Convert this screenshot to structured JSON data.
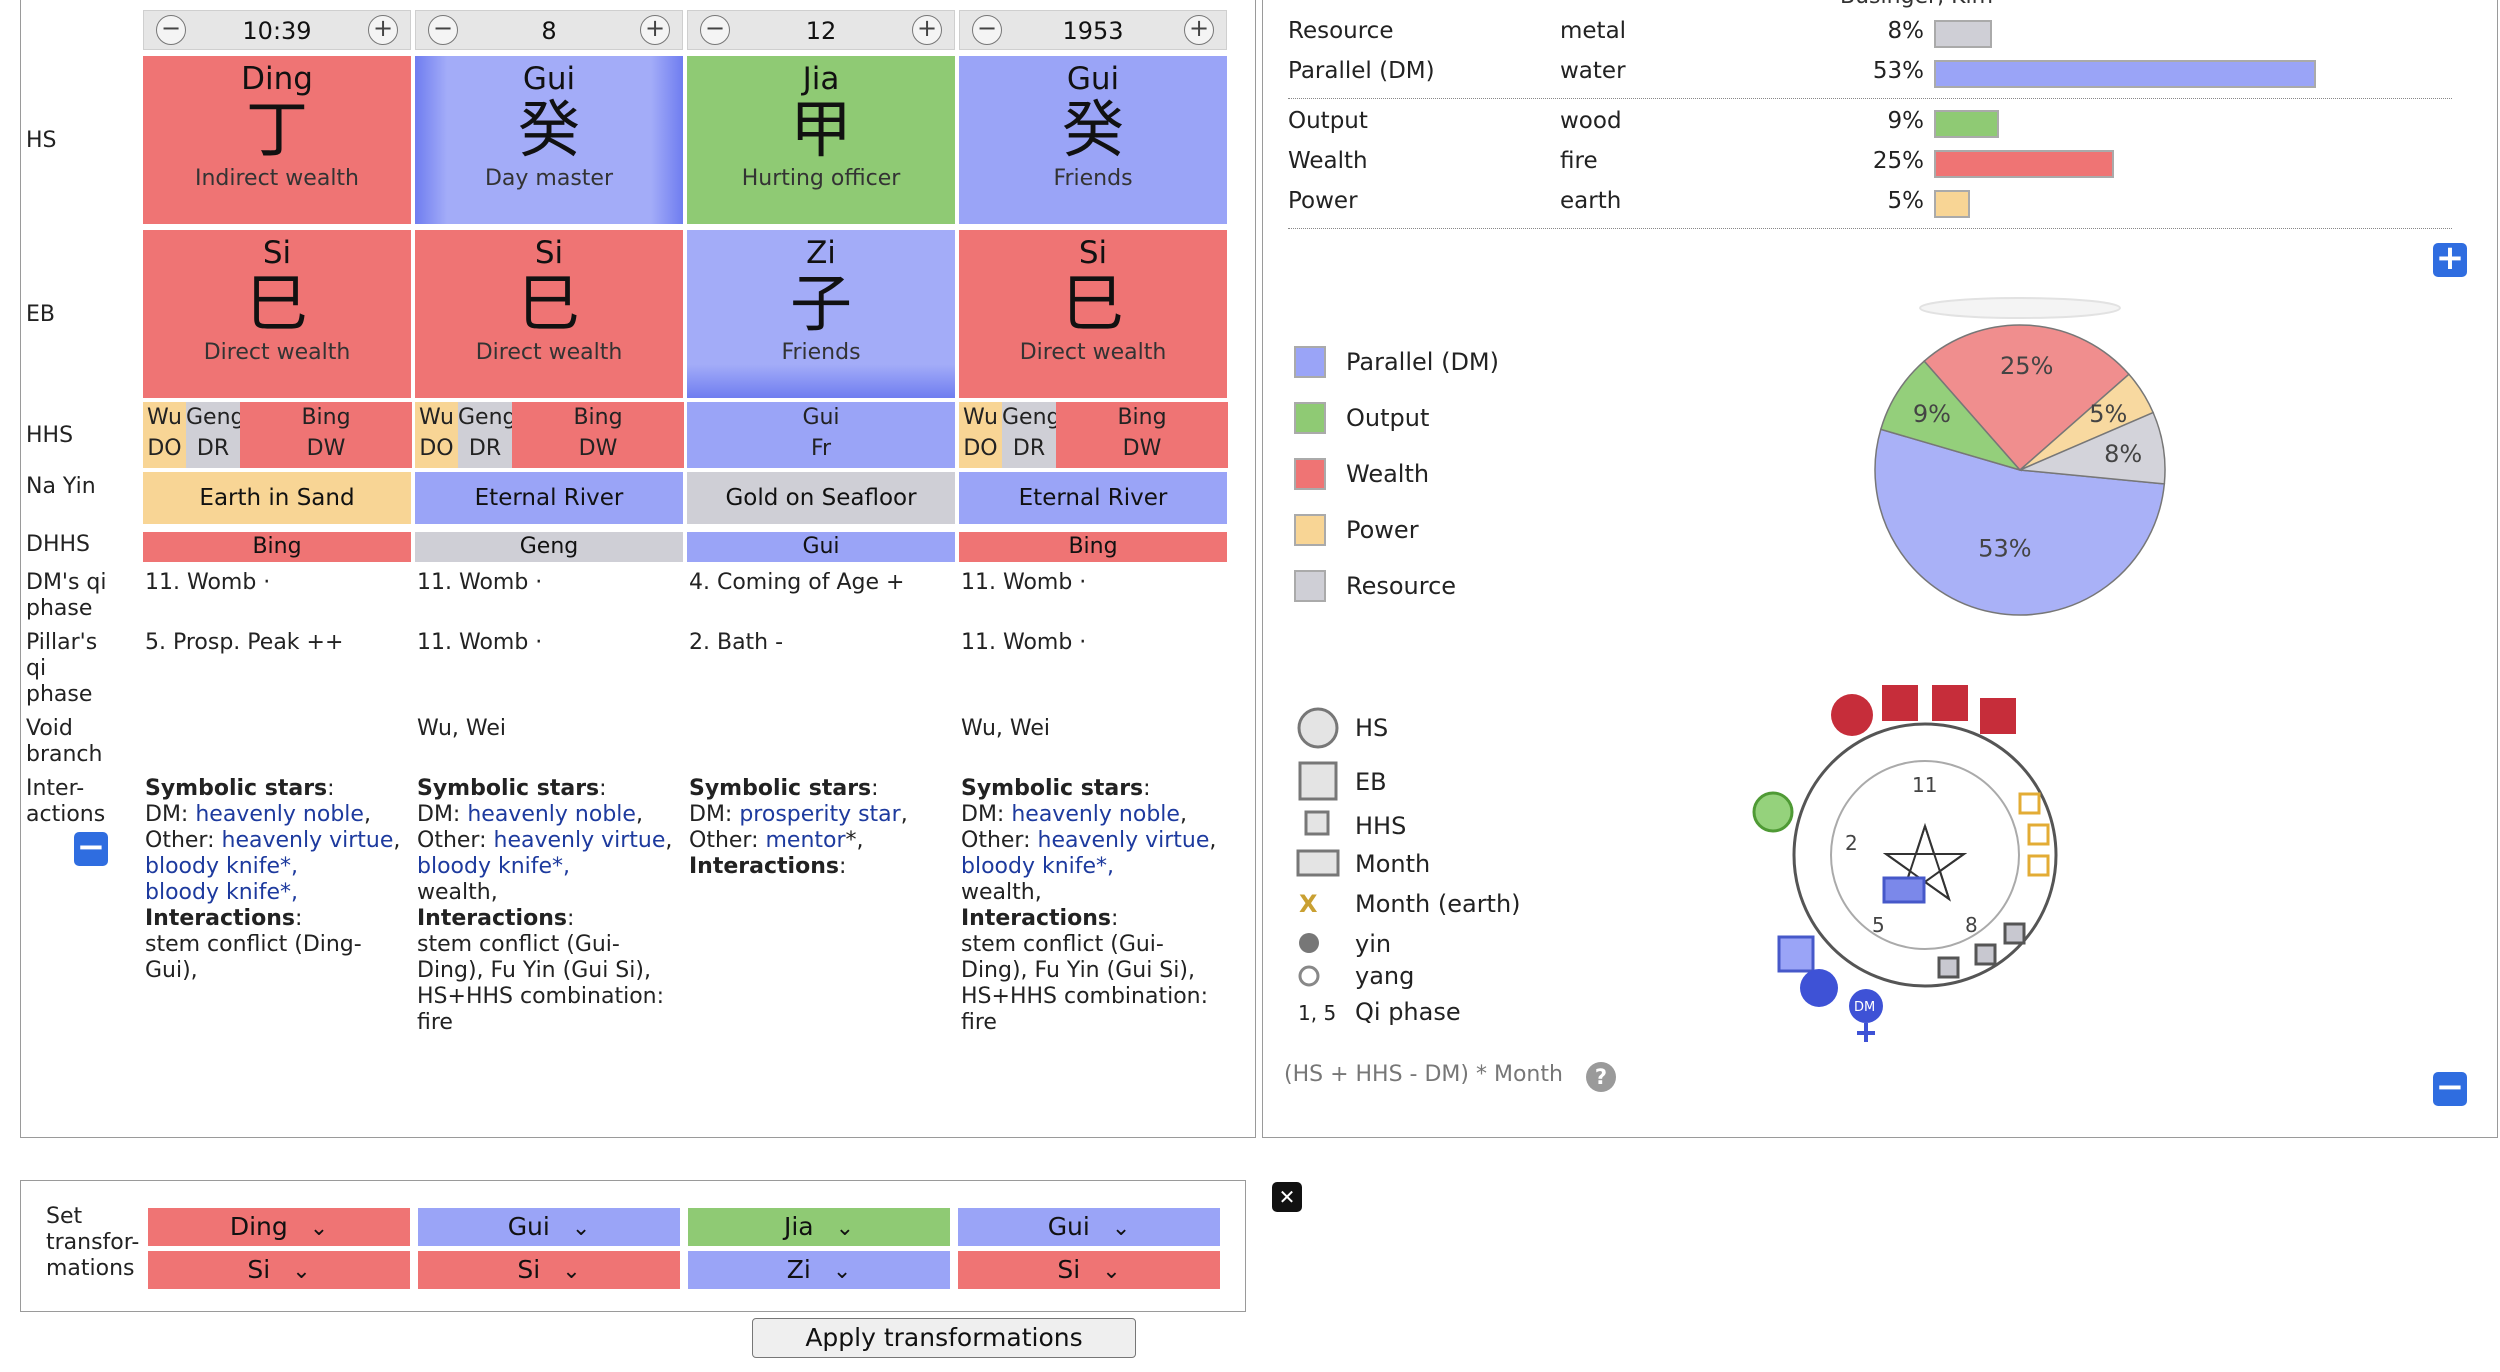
{
  "steppers": [
    {
      "value": "10:39",
      "minus": "−",
      "plus": "+"
    },
    {
      "value": "8",
      "minus": "−",
      "plus": "+"
    },
    {
      "value": "12",
      "minus": "−",
      "plus": "+"
    },
    {
      "value": "1953",
      "minus": "−",
      "plus": "+"
    }
  ],
  "row_labels": {
    "hs": "HS",
    "eb": "EB",
    "hhs": "HHS",
    "nayin": "Na Yin",
    "dhhs": "DHHS",
    "dm_qi": "DM's qi phase",
    "pillar_qi": "Pillar's qi phase",
    "void": "Void branch",
    "inter": "Inter- actions"
  },
  "pillars": [
    {
      "hs": {
        "name": "Ding",
        "char": "丁",
        "role": "Indirect wealth",
        "color": "#ef7474"
      },
      "eb": {
        "name": "Si",
        "char": "巳",
        "role": "Direct wealth",
        "color": "#ef7474"
      },
      "hhs": [
        {
          "a": "Wu",
          "b": "DO",
          "color": "#f8d595"
        },
        {
          "a": "Geng",
          "b": "DR",
          "color": "#cfcfd6"
        },
        {
          "a": "Bing",
          "b": "DW",
          "color": "#ef7474"
        }
      ],
      "nayin": {
        "text": "Earth in Sand",
        "color": "#f8d595"
      },
      "dhhs": {
        "text": "Bing",
        "color": "#ef7474"
      },
      "dm_qi": "11. Womb ·",
      "pillar_qi": "5. Prosp. Peak ++",
      "void": "",
      "stars_head": "Symbolic stars",
      "dm_label": "DM:",
      "dm_stars": "heavenly noble",
      "other_label": "Other:",
      "other_stars": "heavenly virtue",
      "extra_stars": "bloody knife*,",
      "extra_stars2": "bloody knife*,",
      "inter_head": "Interactions",
      "inter_text": "stem conflict (Ding-Gui),"
    },
    {
      "hs": {
        "name": "Gui",
        "char": "癸",
        "role": "Day master",
        "color": "#9aa4f7"
      },
      "eb": {
        "name": "Si",
        "char": "巳",
        "role": "Direct wealth",
        "color": "#ef7474"
      },
      "hhs": [
        {
          "a": "Wu",
          "b": "DO",
          "color": "#f8d595"
        },
        {
          "a": "Geng",
          "b": "DR",
          "color": "#cfcfd6"
        },
        {
          "a": "Bing",
          "b": "DW",
          "color": "#ef7474"
        }
      ],
      "nayin": {
        "text": "Eternal River",
        "color": "#9aa4f7"
      },
      "dhhs": {
        "text": "Geng",
        "color": "#cfcfd6"
      },
      "dm_qi": "11. Womb ·",
      "pillar_qi": "11. Womb ·",
      "void": "Wu, Wei",
      "stars_head": "Symbolic stars",
      "dm_label": "DM:",
      "dm_stars": "heavenly noble",
      "other_label": "Other:",
      "other_stars": "heavenly virtue",
      "extra_stars": "bloody knife*,",
      "extra_stars2": "wealth,",
      "inter_head": "Interactions",
      "inter_text": "stem conflict (Gui-Ding), Fu Yin (Gui Si), HS+HHS combination: fire"
    },
    {
      "hs": {
        "name": "Jia",
        "char": "甲",
        "role": "Hurting officer",
        "color": "#8fca74"
      },
      "eb": {
        "name": "Zi",
        "char": "子",
        "role": "Friends",
        "color": "#9aa4f7"
      },
      "hhs": [
        {
          "a": "Gui",
          "b": "Fr",
          "color": "#9aa4f7"
        }
      ],
      "nayin": {
        "text": "Gold on Seafloor",
        "color": "#cfcfd6"
      },
      "dhhs": {
        "text": "Gui",
        "color": "#9aa4f7"
      },
      "dm_qi": "4. Coming of Age +",
      "pillar_qi": "2. Bath -",
      "void": "",
      "stars_head": "Symbolic stars",
      "dm_label": "DM:",
      "dm_stars": "prosperity star",
      "other_label": "Other:",
      "other_stars": "mentor",
      "extra_stars": "",
      "extra_stars2": "",
      "inter_head": "Interactions",
      "inter_text": ""
    },
    {
      "hs": {
        "name": "Gui",
        "char": "癸",
        "role": "Friends",
        "color": "#9aa4f7"
      },
      "eb": {
        "name": "Si",
        "char": "巳",
        "role": "Direct wealth",
        "color": "#ef7474"
      },
      "hhs": [
        {
          "a": "Wu",
          "b": "DO",
          "color": "#f8d595"
        },
        {
          "a": "Geng",
          "b": "DR",
          "color": "#cfcfd6"
        },
        {
          "a": "Bing",
          "b": "DW",
          "color": "#ef7474"
        }
      ],
      "nayin": {
        "text": "Eternal River",
        "color": "#9aa4f7"
      },
      "dhhs": {
        "text": "Bing",
        "color": "#ef7474"
      },
      "dm_qi": "11. Womb ·",
      "pillar_qi": "11. Womb ·",
      "void": "Wu, Wei",
      "stars_head": "Symbolic stars",
      "dm_label": "DM:",
      "dm_stars": "heavenly noble",
      "other_label": "Other:",
      "other_stars": "heavenly virtue",
      "extra_stars": "bloody knife*,",
      "extra_stars2": "wealth,",
      "inter_head": "Interactions",
      "inter_text": "stem conflict (Gui-Ding), Fu Yin (Gui Si), HS+HHS combination: fire"
    }
  ],
  "strength_table": {
    "header_partial": "Businger, Kim",
    "rows": [
      {
        "label": "Resource",
        "element": "metal",
        "pct": "8%",
        "value": 8,
        "color": "#cfcfd6"
      },
      {
        "label": "Parallel (DM)",
        "element": "water",
        "pct": "53%",
        "value": 53,
        "color": "#9aa4f7"
      },
      {
        "label": "Output",
        "element": "wood",
        "pct": "9%",
        "value": 9,
        "color": "#8fca74"
      },
      {
        "label": "Wealth",
        "element": "fire",
        "pct": "25%",
        "value": 25,
        "color": "#ef7474"
      },
      {
        "label": "Power",
        "element": "earth",
        "pct": "5%",
        "value": 5,
        "color": "#f8d595"
      }
    ]
  },
  "pie_legend": [
    {
      "label": "Parallel (DM)",
      "color": "#9aa4f7"
    },
    {
      "label": "Output",
      "color": "#8fca74"
    },
    {
      "label": "Wealth",
      "color": "#ef7474"
    },
    {
      "label": "Power",
      "color": "#f8d595"
    },
    {
      "label": "Resource",
      "color": "#cfcfd6"
    }
  ],
  "chart_data": {
    "type": "pie",
    "categories": [
      "Parallel (DM)",
      "Output",
      "Wealth",
      "Power",
      "Resource"
    ],
    "values": [
      53,
      9,
      25,
      5,
      8
    ],
    "labels": [
      "53%",
      "9%",
      "25%",
      "5%",
      "8%"
    ],
    "colors": [
      "#a9b1f7",
      "#94cf7b",
      "#f08e8e",
      "#f8d9a0",
      "#d3d3da"
    ]
  },
  "symbol_legend": {
    "hs": "HS",
    "eb": "EB",
    "hhs": "HHS",
    "month": "Month",
    "month_earth": "Month (earth)",
    "month_earth_mark": "X",
    "yin": "yin",
    "yang": "yang",
    "qi_nums": "1, 5",
    "qi_phase": "Qi phase"
  },
  "diagram": {
    "n11": "11",
    "n2": "2",
    "n5": "5",
    "n8": "8",
    "dm": "DM"
  },
  "formula": "(HS + HHS - DM) * Month",
  "help_glyph": "?",
  "transform": {
    "label": "Set transfor- mations",
    "hs": [
      {
        "value": "Ding",
        "color": "#ef7474"
      },
      {
        "value": "Gui",
        "color": "#9aa4f7"
      },
      {
        "value": "Jia",
        "color": "#8fca74"
      },
      {
        "value": "Gui",
        "color": "#9aa4f7"
      }
    ],
    "eb": [
      {
        "value": "Si",
        "color": "#ef7474"
      },
      {
        "value": "Si",
        "color": "#ef7474"
      },
      {
        "value": "Zi",
        "color": "#9aa4f7"
      },
      {
        "value": "Si",
        "color": "#ef7474"
      }
    ],
    "apply_label": "Apply transformations",
    "chevron": "⌄"
  },
  "buttons": {
    "plus": "+",
    "minus": "−",
    "close": "✕"
  }
}
